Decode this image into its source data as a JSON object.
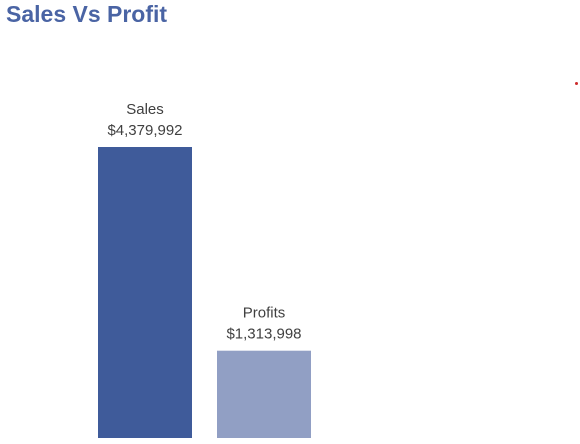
{
  "title": "Sales Vs Profit",
  "chart_data": {
    "type": "bar",
    "title": "Sales Vs Profit",
    "categories": [
      "Sales",
      "Profits"
    ],
    "values": [
      4379992,
      1313998
    ],
    "data_labels": [
      "$4,379,992",
      "$1,313,998"
    ],
    "colors": [
      "#3f5b9a",
      "#919fc4"
    ],
    "xlabel": "",
    "ylabel": "",
    "ylim": [
      0,
      4379992
    ],
    "grid": false,
    "legend": "none"
  },
  "colors": {
    "title": "#4a64a4",
    "label_text": "#404040",
    "stray_dot": "#cc2b2b"
  }
}
